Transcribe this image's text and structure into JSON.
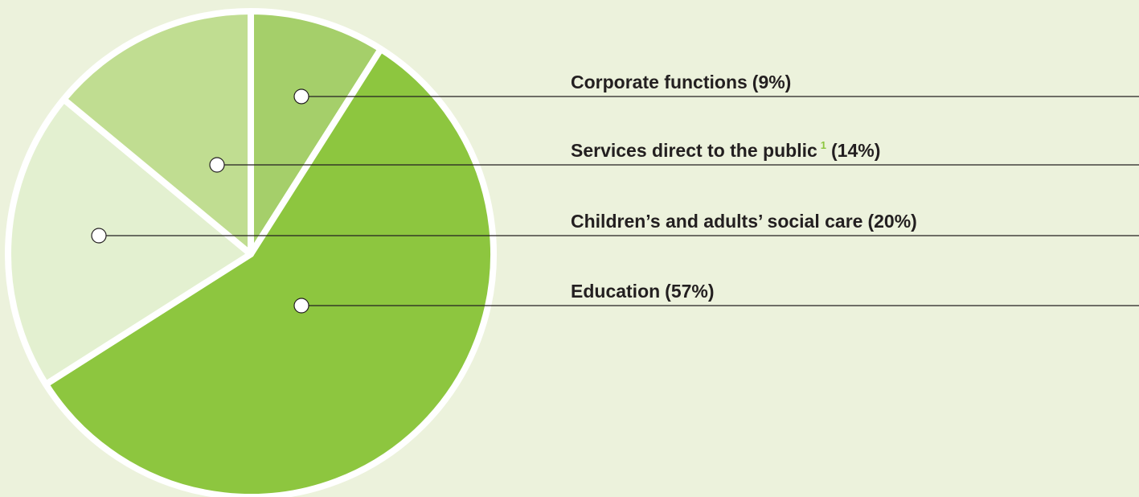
{
  "chart_data": {
    "type": "pie",
    "categories": [
      "Corporate functions",
      "Education",
      "Children’s and adults’ social care",
      "Services direct to the public"
    ],
    "values": [
      9,
      57,
      20,
      14
    ],
    "value_labels": [
      "(9%)",
      "(57%)",
      "(20%)",
      "(14%)"
    ],
    "colors": [
      "#a5cf6a",
      "#8dc63f",
      "#e3f0d0",
      "#c0dd91"
    ],
    "annotations": [
      {
        "text": "1",
        "color": "#8dc63f"
      }
    ]
  }
}
